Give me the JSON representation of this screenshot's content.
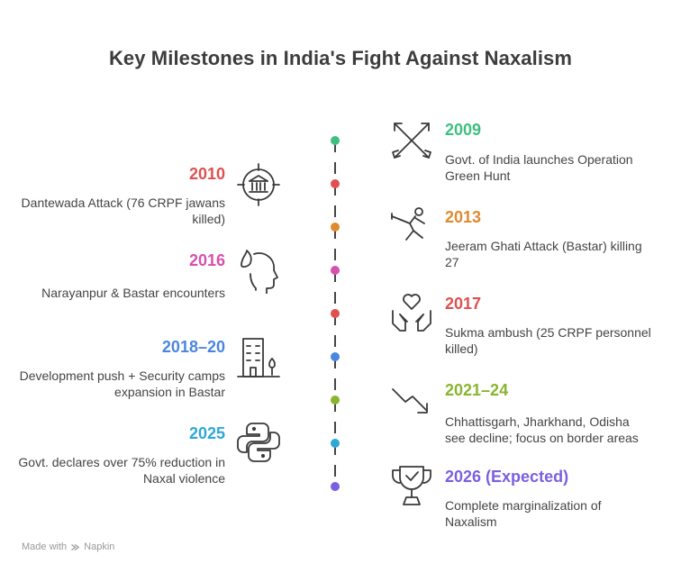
{
  "title": "Key Milestones in India's Fight Against Naxalism",
  "colors": {
    "green": "#3fbf7f",
    "red": "#e05050",
    "orange": "#e08a30",
    "pink": "#d651b0",
    "blue": "#4a86e0",
    "olive": "#8ab530",
    "cyan": "#2ea8d8",
    "purple": "#7b5fe0"
  },
  "milestones": [
    {
      "year": "2009",
      "text": "Govt. of India launches Operation Green Hunt",
      "icon": "crossed-arrows-icon",
      "side": "right",
      "color": "#3fbf7f"
    },
    {
      "year": "2010",
      "text": "Dantewada Attack (76 CRPF jawans killed)",
      "icon": "target-building-icon",
      "side": "left",
      "color": "#e05050"
    },
    {
      "year": "2013",
      "text": "Jeeram Ghati Attack (Bastar) killing 27",
      "icon": "fencer-icon",
      "side": "right",
      "color": "#e08a30"
    },
    {
      "year": "2016",
      "text": "Narayanpur & Bastar encounters",
      "icon": "head-flame-icon",
      "side": "left",
      "color": "#d651b0"
    },
    {
      "year": "2017",
      "text": "Sukma ambush (25 CRPF personnel killed)",
      "icon": "hands-heart-icon",
      "side": "right",
      "color": "#e05050"
    },
    {
      "year": "2018–20",
      "text": "Development push + Security camps expansion in Bastar",
      "icon": "building-tree-icon",
      "side": "left",
      "color": "#4a86e0"
    },
    {
      "year": "2021–24",
      "text": "Chhattisgarh, Jharkhand, Odisha see decline; focus on border areas",
      "icon": "trend-down-icon",
      "side": "right",
      "color": "#8ab530"
    },
    {
      "year": "2025",
      "text": "Govt. declares over 75% reduction in Naxal violence",
      "icon": "python-logo-icon",
      "side": "left",
      "color": "#2ea8d8"
    },
    {
      "year": "2026 (Expected)",
      "text": "Complete marginalization of Naxalism",
      "icon": "trophy-check-icon",
      "side": "right",
      "color": "#7b5fe0"
    }
  ],
  "footer": {
    "prefix": "Made with",
    "brand": "Napkin"
  }
}
